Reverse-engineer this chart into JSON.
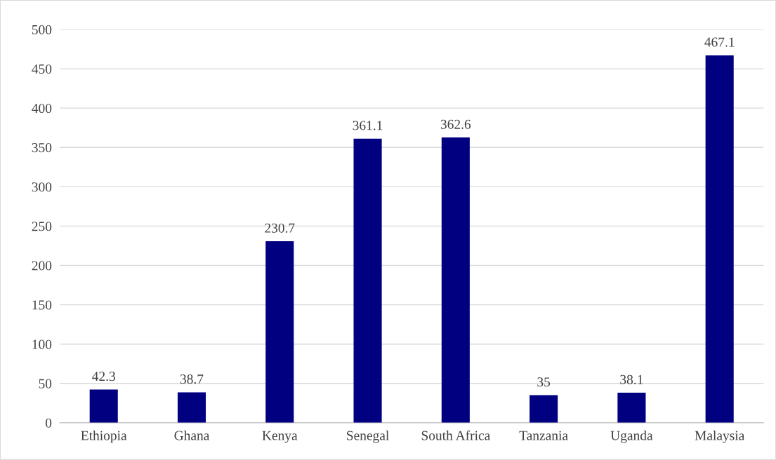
{
  "chart_data": {
    "type": "bar",
    "categories": [
      "Ethiopia",
      "Ghana",
      "Kenya",
      "Senegal",
      "South Africa",
      "Tanzania",
      "Uganda",
      "Malaysia"
    ],
    "values": [
      42.3,
      38.7,
      230.7,
      361.1,
      362.6,
      35,
      38.1,
      467.1
    ],
    "color": "#000080",
    "ylim": [
      0,
      500
    ],
    "yticks": [
      0,
      50,
      100,
      150,
      200,
      250,
      300,
      350,
      400,
      450,
      500
    ],
    "grid": "y",
    "data_labels": true,
    "legend": false
  }
}
